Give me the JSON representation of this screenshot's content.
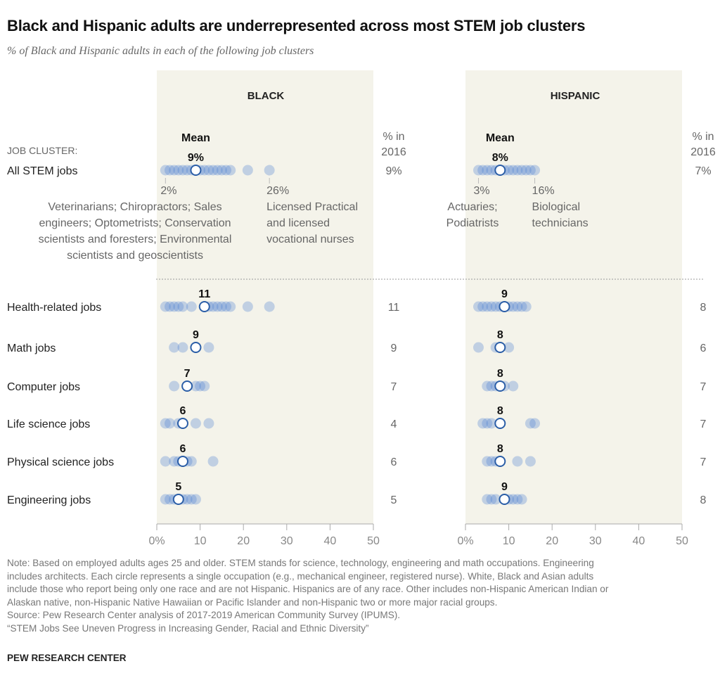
{
  "title": "Black and Hispanic adults are underrepresented across most STEM job clusters",
  "subtitle": "% of Black and Hispanic adults in each of the following job clusters",
  "job_cluster_label": "JOB CLUSTER:",
  "mean_label": "Mean",
  "pct2016_label": [
    "% in",
    "2016"
  ],
  "colors": {
    "panel_bg": "#f4f3ea",
    "dot": "#4a7ed0",
    "mean_stroke": "#2b5ea7",
    "axis": "#aaaaaa"
  },
  "chart_data": [
    {
      "type": "scatter",
      "title": "BLACK",
      "xlim": [
        0,
        50
      ],
      "x_ticks": [
        "0%",
        "10",
        "20",
        "30",
        "40",
        "50"
      ],
      "rows": [
        {
          "label": "All STEM jobs",
          "mean": 9,
          "mean_label": "9%",
          "pct_2016": "9%",
          "values": [
            2,
            3,
            4,
            5,
            6,
            7,
            8,
            10,
            11,
            12,
            13,
            14,
            15,
            16,
            17,
            21,
            26
          ]
        },
        {
          "label": "Health-related jobs",
          "mean": 11,
          "mean_label": "11",
          "pct_2016": "11",
          "values": [
            2,
            3,
            4,
            5,
            6,
            8,
            12,
            13,
            14,
            15,
            16,
            17,
            21,
            26
          ]
        },
        {
          "label": "Math jobs",
          "mean": 9,
          "mean_label": "9",
          "pct_2016": "9",
          "values": [
            4,
            6,
            12
          ]
        },
        {
          "label": "Computer jobs",
          "mean": 7,
          "mean_label": "7",
          "pct_2016": "7",
          "values": [
            4,
            9,
            10,
            11
          ]
        },
        {
          "label": "Life science jobs",
          "mean": 6,
          "mean_label": "6",
          "pct_2016": "4",
          "values": [
            2,
            3,
            5,
            9,
            12
          ]
        },
        {
          "label": "Physical science jobs",
          "mean": 6,
          "mean_label": "6",
          "pct_2016": "6",
          "values": [
            2,
            4,
            5,
            7,
            8,
            13
          ]
        },
        {
          "label": "Engineering jobs",
          "mean": 5,
          "mean_label": "5",
          "pct_2016": "5",
          "values": [
            2,
            3,
            4,
            5,
            6,
            7,
            8,
            9
          ]
        }
      ],
      "annotations": {
        "min": {
          "value": "2%",
          "text": [
            "Veterinarians; Chiropractors; Sales",
            "engineers; Optometrists; Conservation",
            "scientists and foresters; Environmental",
            "scientists and geoscientists"
          ]
        },
        "max": {
          "value": "26%",
          "text": [
            "Licensed Practical",
            "and licensed",
            "vocational nurses"
          ]
        }
      }
    },
    {
      "type": "scatter",
      "title": "HISPANIC",
      "xlim": [
        0,
        50
      ],
      "x_ticks": [
        "0%",
        "10",
        "20",
        "30",
        "40",
        "50"
      ],
      "rows": [
        {
          "label": "All STEM jobs",
          "mean": 8,
          "mean_label": "8%",
          "pct_2016": "7%",
          "values": [
            3,
            4,
            5,
            6,
            7,
            9,
            10,
            11,
            12,
            13,
            14,
            15,
            16
          ]
        },
        {
          "label": "Health-related jobs",
          "mean": 9,
          "mean_label": "9",
          "pct_2016": "8",
          "values": [
            3,
            4,
            5,
            6,
            7,
            8,
            10,
            11,
            12,
            13,
            14
          ]
        },
        {
          "label": "Math jobs",
          "mean": 8,
          "mean_label": "8",
          "pct_2016": "6",
          "values": [
            3,
            7,
            10
          ]
        },
        {
          "label": "Computer jobs",
          "mean": 8,
          "mean_label": "8",
          "pct_2016": "7",
          "values": [
            5,
            6,
            7,
            9,
            11
          ]
        },
        {
          "label": "Life science jobs",
          "mean": 8,
          "mean_label": "8",
          "pct_2016": "7",
          "values": [
            4,
            5,
            6,
            15,
            16
          ]
        },
        {
          "label": "Physical science jobs",
          "mean": 8,
          "mean_label": "8",
          "pct_2016": "7",
          "values": [
            5,
            6,
            7,
            12,
            15
          ]
        },
        {
          "label": "Engineering jobs",
          "mean": 9,
          "mean_label": "9",
          "pct_2016": "8",
          "values": [
            5,
            6,
            7,
            10,
            11,
            12,
            13
          ]
        }
      ],
      "annotations": {
        "min": {
          "value": "3%",
          "text": [
            "Actuaries;",
            "Podiatrists"
          ]
        },
        "max": {
          "value": "16%",
          "text": [
            "Biological",
            "technicians"
          ]
        }
      }
    }
  ],
  "notes": [
    "Note: Based on employed adults ages 25 and older. STEM stands for science, technology, engineering and math occupations. Engineering",
    "includes architects. Each circle represents a single occupation (e.g., mechanical engineer, registered nurse). White, Black and Asian adults",
    "include those who report being only one race and are not Hispanic. Hispanics are of any race. Other includes non-Hispanic American Indian or",
    "Alaskan native, non-Hispanic Native Hawaiian or Pacific Islander and non-Hispanic two or more major racial groups.",
    "Source: Pew Research Center analysis of 2017-2019 American Community Survey (IPUMS).",
    "“STEM Jobs See Uneven Progress in Increasing Gender, Racial and Ethnic Diversity”"
  ],
  "brand": "PEW RESEARCH CENTER"
}
